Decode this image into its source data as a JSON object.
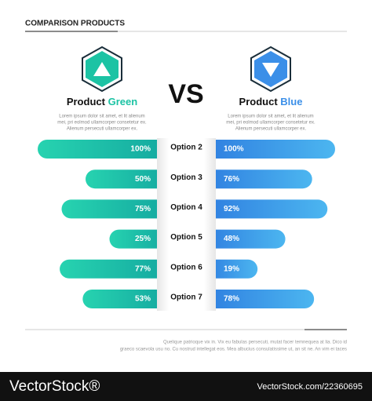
{
  "chart_data": {
    "type": "bar",
    "title": "COMPARISON PRODUCTS",
    "vs": "VS",
    "product_label": "Product",
    "categories": [
      "Option 2",
      "Option 3",
      "Option 4",
      "Option 5",
      "Option 6",
      "Option 7"
    ],
    "xlim": [
      0,
      100
    ],
    "series": [
      {
        "name": "Green",
        "color": "#1cc3a4",
        "values": [
          100,
          50,
          75,
          25,
          77,
          53
        ],
        "value_labels": [
          "100%",
          "50%",
          "75%",
          "25%",
          "77%",
          "53%"
        ],
        "description": [
          "Lorem ipsum dolor sit amet, et lit alienum",
          "mei, pri eolmod ullamcorper consetetur ex.",
          "Alienum persecuti ullamcorper ex."
        ]
      },
      {
        "name": "Blue",
        "color": "#3b8fe8",
        "values": [
          100,
          76,
          92,
          48,
          19,
          78
        ],
        "value_labels": [
          "100%",
          "76%",
          "92%",
          "48%",
          "19%",
          "78%"
        ],
        "description": [
          "Lorem ipsum dolor sit amet, et lit alienum",
          "mei, pri eolmod ullamcorper consetetur ex.",
          "Alienum persecuti ullamcorper ex."
        ]
      }
    ],
    "footer": [
      "Quelique patrioque vix in. Vix eu fabulas persecuti, mutat facer temnequea at lia. Dico id",
      "graeco scaevola usu no. Cu nostrud intellegat eos. Mea albucius consulatissime ut, an sit ne. An vim ei taces"
    ],
    "watermark": {
      "brand": "VectorStock®",
      "url": "VectorStock.com/22360695"
    }
  }
}
